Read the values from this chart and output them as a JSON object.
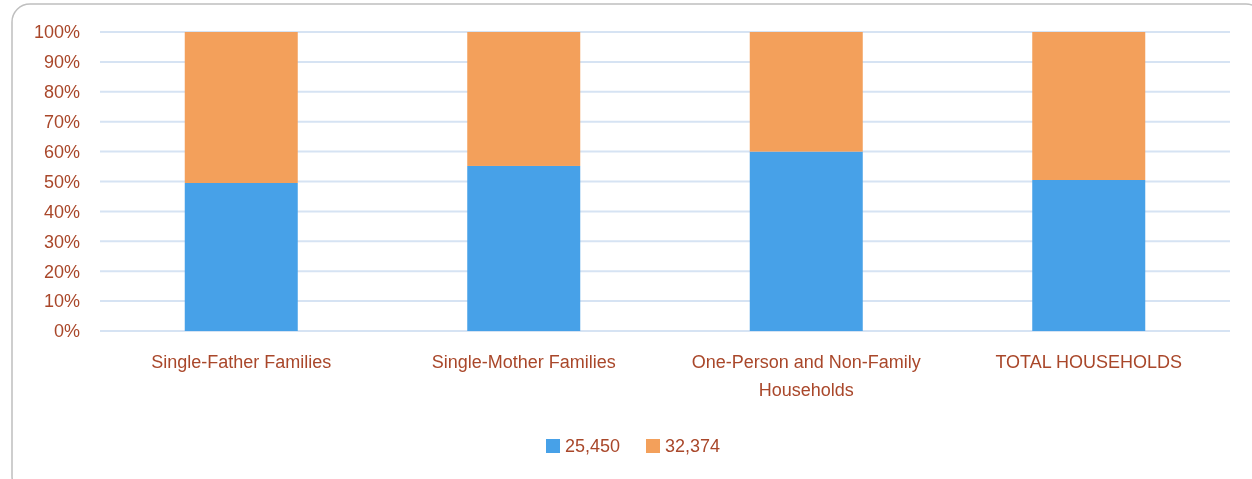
{
  "chart_data": {
    "type": "bar",
    "stacked": true,
    "categories": [
      "Single-Father Families",
      "Single-Mother Families",
      "One-Person and Non-Family Households",
      "TOTAL HOUSEHOLDS"
    ],
    "series": [
      {
        "name": "25,450",
        "color": "#47a1e8",
        "values": [
          49.5,
          55.2,
          60,
          50.5
        ]
      },
      {
        "name": "32,374",
        "color": "#f3a05b",
        "values": [
          50.5,
          44.8,
          40,
          49.5
        ]
      }
    ],
    "ylim": [
      0,
      100
    ],
    "yticks": [
      {
        "value": 0,
        "label": "0%"
      },
      {
        "value": 10,
        "label": "10%"
      },
      {
        "value": 20,
        "label": "20%"
      },
      {
        "value": 30,
        "label": "30%"
      },
      {
        "value": 40,
        "label": "40%"
      },
      {
        "value": 50,
        "label": "50%"
      },
      {
        "value": 60,
        "label": "60%"
      },
      {
        "value": 70,
        "label": "70%"
      },
      {
        "value": 80,
        "label": "80%"
      },
      {
        "value": 90,
        "label": "90%"
      },
      {
        "value": 100,
        "label": "100%"
      }
    ],
    "grid": "y",
    "legend": "bottom"
  }
}
